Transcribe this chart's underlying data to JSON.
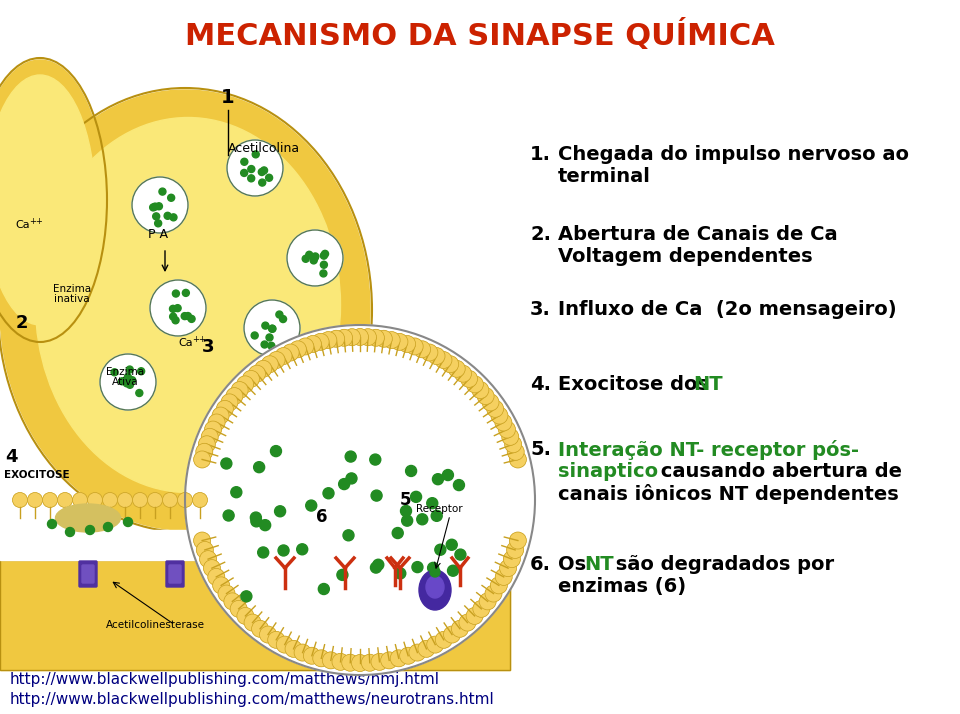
{
  "title": "MECANISMO DA SINAPSE QUÍMICA",
  "title_color": "#cc2200",
  "title_fontsize": 22,
  "bg_color": "#ffffff",
  "footer_lines": [
    "http://www.blackwellpublishing.com/matthews/nmj.html",
    "http://www.blackwellpublishing.com/matthews/neurotrans.html"
  ],
  "footer_color": "#000080",
  "footer_fontsize": 11,
  "text_fontsize": 14,
  "number_fontsize": 14,
  "green_color": "#228B22",
  "black_color": "#000000",
  "items_y": [
    145,
    225,
    300,
    375,
    440,
    555
  ]
}
